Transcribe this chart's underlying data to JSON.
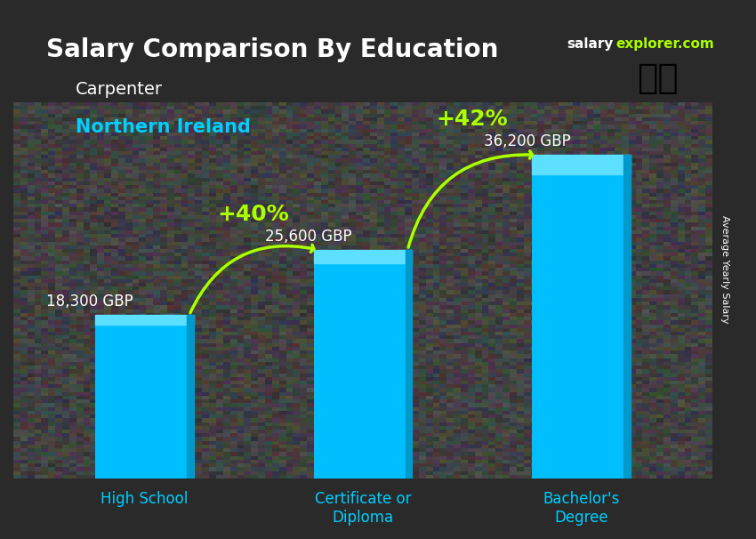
{
  "title": "Salary Comparison By Education",
  "subtitle_job": "Carpenter",
  "subtitle_location": "Northern Ireland",
  "ylabel": "Average Yearly Salary",
  "categories": [
    "High School",
    "Certificate or\nDiploma",
    "Bachelor's\nDegree"
  ],
  "values": [
    18300,
    25600,
    36200
  ],
  "labels": [
    "18,300 GBP",
    "25,600 GBP",
    "36,200 GBP"
  ],
  "bar_color": "#00BFFF",
  "bar_color_top": "#00D4FF",
  "bar_color_dark": "#0099CC",
  "arrow_color": "#AAFF00",
  "pct_labels": [
    "+40%",
    "+42%"
  ],
  "background_color": "#1a1a2e",
  "title_color": "#FFFFFF",
  "subtitle_job_color": "#FFFFFF",
  "subtitle_location_color": "#00CFFF",
  "label_color": "#FFFFFF",
  "xlabel_color": "#00CFFF",
  "watermark": "salaryexplorer.com",
  "figsize": [
    8.5,
    6.06
  ],
  "dpi": 100
}
